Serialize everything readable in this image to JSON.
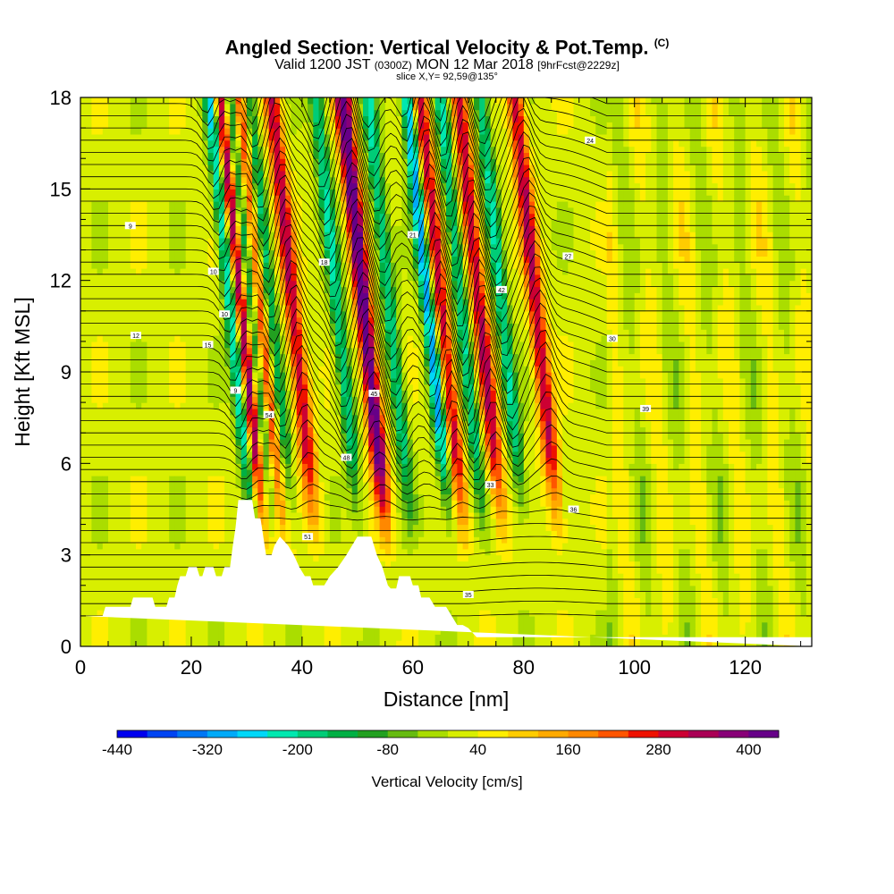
{
  "header": {
    "title": "Angled Section: Vertical Velocity & Pot.Temp.",
    "title_tag": "(C)",
    "valid_prefix": "Valid 1200 JST",
    "valid_utc": "(0300Z)",
    "valid_date": "MON 12 Mar 2018",
    "valid_run": "[9hrFcst@2229z]",
    "slice": "slice X,Y= 92,59@135°"
  },
  "chart_data": {
    "type": "heatmap",
    "xlabel": "Distance [nm]",
    "ylabel": "Height [Kft MSL]",
    "xlim": [
      0,
      132
    ],
    "ylim": [
      0,
      18
    ],
    "x_ticks": [
      "0",
      "20",
      "40",
      "60",
      "80",
      "100",
      "120"
    ],
    "y_ticks": [
      "0",
      "3",
      "6",
      "9",
      "12",
      "15",
      "18"
    ],
    "colorbar": {
      "label": "Vertical Velocity [cm/s]",
      "tick_labels": [
        "-440",
        "-320",
        "-200",
        "-80",
        "40",
        "160",
        "280",
        "400"
      ],
      "levels": [
        -440,
        -400,
        -360,
        -320,
        -280,
        -240,
        -200,
        -160,
        -120,
        -80,
        -40,
        0,
        40,
        80,
        120,
        160,
        200,
        240,
        280,
        320,
        360,
        400,
        440
      ],
      "colors": [
        "#0000ee",
        "#0044f2",
        "#0077f5",
        "#00aaf8",
        "#00d8f8",
        "#00e8b0",
        "#00cc77",
        "#00b044",
        "#22a020",
        "#66bb10",
        "#aadd00",
        "#d8ef00",
        "#ffee00",
        "#ffcc00",
        "#ffaa00",
        "#ff8800",
        "#ff5500",
        "#ee1100",
        "#cc0033",
        "#aa0055",
        "#880077",
        "#660088"
      ]
    },
    "updrafts_x": [
      33.5,
      36.8,
      42.8,
      55.6,
      69.5,
      76.5,
      86.7
    ],
    "downdrafts_x": [
      31.8,
      35.2,
      38.6,
      50.8,
      60.2,
      67.3,
      73.2,
      80.5
    ],
    "terrain": [
      [
        0,
        1.0
      ],
      [
        4,
        1.0
      ],
      [
        4.5,
        1.3
      ],
      [
        9,
        1.3
      ],
      [
        9.5,
        1.6
      ],
      [
        13,
        1.6
      ],
      [
        13.5,
        1.3
      ],
      [
        15.5,
        1.3
      ],
      [
        16,
        1.6
      ],
      [
        17,
        1.6
      ],
      [
        17.5,
        2.0
      ],
      [
        18,
        2.3
      ],
      [
        19,
        2.3
      ],
      [
        19.5,
        2.6
      ],
      [
        21,
        2.6
      ],
      [
        21.5,
        2.3
      ],
      [
        22,
        2.3
      ],
      [
        22.5,
        2.6
      ],
      [
        24,
        2.6
      ],
      [
        24.5,
        2.3
      ],
      [
        25.5,
        2.3
      ],
      [
        26,
        2.6
      ],
      [
        27,
        2.6
      ],
      [
        27.5,
        3.3
      ],
      [
        28,
        3.9
      ],
      [
        28.5,
        4.8
      ],
      [
        31,
        4.8
      ],
      [
        31.5,
        4.2
      ],
      [
        32.5,
        4.2
      ],
      [
        33,
        3.6
      ],
      [
        33.5,
        3.0
      ],
      [
        34.5,
        3.0
      ],
      [
        35,
        3.3
      ],
      [
        36,
        3.6
      ],
      [
        37.5,
        3.3
      ],
      [
        38.5,
        3.0
      ],
      [
        39.5,
        2.6
      ],
      [
        40.5,
        2.3
      ],
      [
        41.5,
        2.3
      ],
      [
        42,
        2.0
      ],
      [
        44,
        2.0
      ],
      [
        45,
        2.3
      ],
      [
        46.5,
        2.6
      ],
      [
        48,
        3.0
      ],
      [
        49,
        3.3
      ],
      [
        50,
        3.6
      ],
      [
        52.5,
        3.6
      ],
      [
        53,
        3.3
      ],
      [
        53.5,
        3.0
      ],
      [
        54.5,
        2.6
      ],
      [
        55,
        2.3
      ],
      [
        55.5,
        2.0
      ],
      [
        56,
        1.9
      ],
      [
        57,
        1.9
      ],
      [
        57.5,
        2.3
      ],
      [
        59.5,
        2.3
      ],
      [
        60,
        2.0
      ],
      [
        61,
        2.0
      ],
      [
        61.5,
        1.6
      ],
      [
        63,
        1.6
      ],
      [
        64,
        1.3
      ],
      [
        66,
        1.3
      ],
      [
        67,
        1.0
      ],
      [
        68,
        0.7
      ],
      [
        69,
        0.7
      ],
      [
        70,
        0.6
      ],
      [
        71.5,
        0.3
      ],
      [
        132,
        0.3
      ],
      [
        132,
        0
      ]
    ]
  },
  "contours": {
    "label_values": [
      "9",
      "10",
      "12",
      "15",
      "18",
      "21",
      "24",
      "27",
      "30",
      "33",
      "35",
      "36",
      "39",
      "42",
      "45",
      "48",
      "51",
      "54"
    ]
  }
}
